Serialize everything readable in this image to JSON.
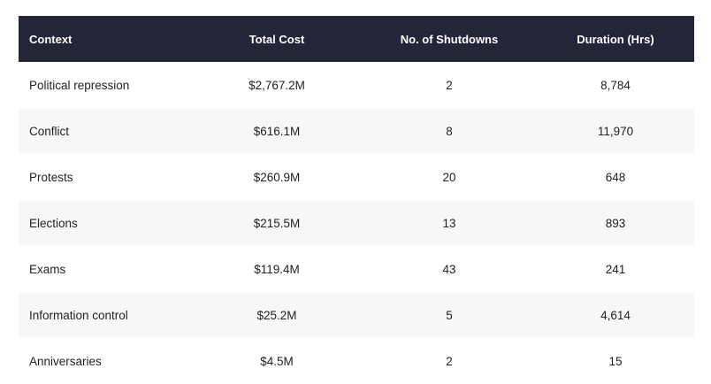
{
  "table": {
    "headers": {
      "context": "Context",
      "total_cost": "Total Cost",
      "shutdowns": "No. of Shutdowns",
      "duration": "Duration (Hrs)"
    },
    "rows": [
      {
        "context": "Political repression",
        "total_cost": "$2,767.2M",
        "shutdowns": "2",
        "duration": "8,784"
      },
      {
        "context": "Conflict",
        "total_cost": "$616.1M",
        "shutdowns": "8",
        "duration": "11,970"
      },
      {
        "context": "Protests",
        "total_cost": "$260.9M",
        "shutdowns": "20",
        "duration": "648"
      },
      {
        "context": "Elections",
        "total_cost": "$215.5M",
        "shutdowns": "13",
        "duration": "893"
      },
      {
        "context": "Exams",
        "total_cost": "$119.4M",
        "shutdowns": "43",
        "duration": "241"
      },
      {
        "context": "Information control",
        "total_cost": "$25.2M",
        "shutdowns": "5",
        "duration": "4,614"
      },
      {
        "context": "Anniversaries",
        "total_cost": "$4.5M",
        "shutdowns": "2",
        "duration": "15"
      }
    ]
  },
  "colors": {
    "header_bg": "#25253a",
    "header_text": "#ffffff",
    "row_alt_bg": "#f7f7f8",
    "cell_text": "#222222"
  }
}
